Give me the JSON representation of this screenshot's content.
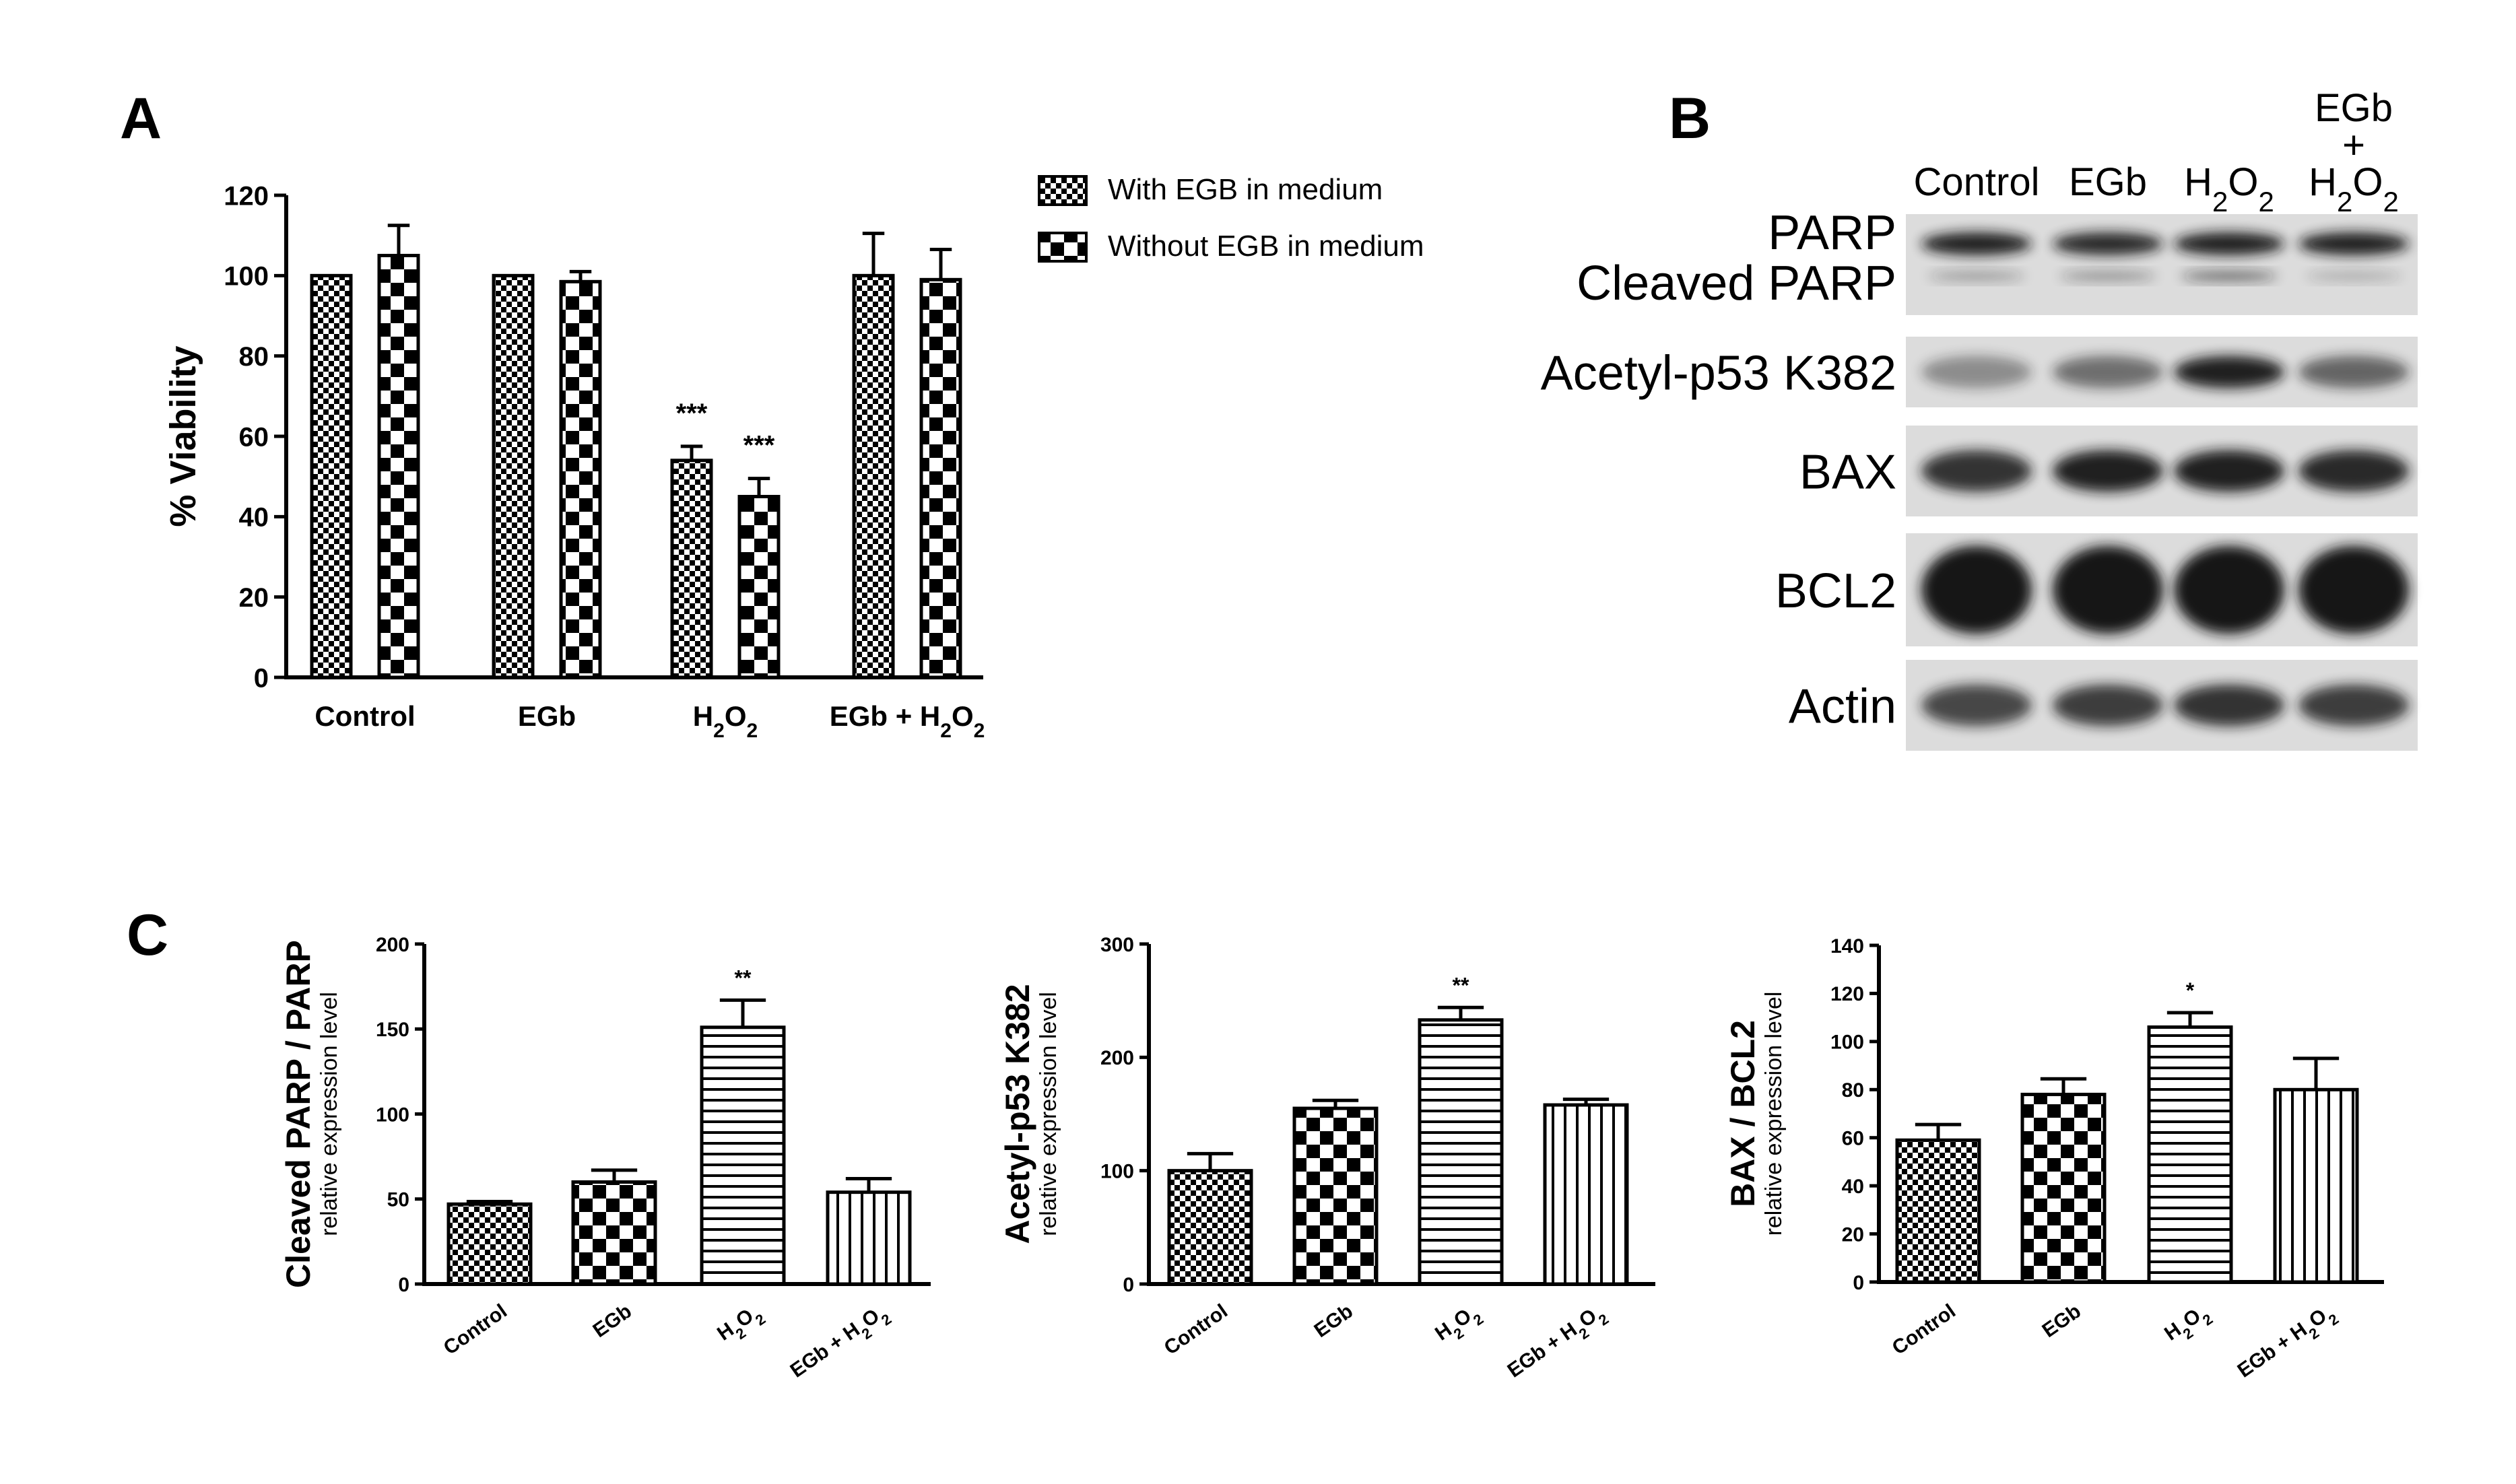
{
  "colors": {
    "ink": "#000000",
    "paper": "#ffffff",
    "blot_bg": "#dcdcdc",
    "band": "#141414"
  },
  "panels": {
    "A": "A",
    "B": "B",
    "C": "C"
  },
  "chart_data": [
    {
      "id": "A",
      "type": "bar",
      "categories": [
        "Control",
        "EGb",
        "H2O2",
        "EGb + H2O2"
      ],
      "category_labels": [
        {
          "parts": [
            {
              "t": "Control"
            }
          ]
        },
        {
          "parts": [
            {
              "t": "EGb"
            }
          ]
        },
        {
          "parts": [
            {
              "t": "H"
            },
            {
              "t": "2",
              "sub": true
            },
            {
              "t": "O"
            },
            {
              "t": "2",
              "sub": true
            }
          ]
        },
        {
          "parts": [
            {
              "t": "EGb + H"
            },
            {
              "t": "2",
              "sub": true
            },
            {
              "t": "O"
            },
            {
              "t": "2",
              "sub": true
            }
          ]
        }
      ],
      "series": [
        {
          "name": "With EGB in medium",
          "pattern": "fine-checker",
          "values": [
            100,
            100,
            54,
            100
          ],
          "errors": [
            0,
            0,
            3.5,
            10.5
          ]
        },
        {
          "name": "Without EGB in medium",
          "pattern": "coarse-checker",
          "values": [
            105,
            98.5,
            45,
            99
          ],
          "errors": [
            7.5,
            2.5,
            4.5,
            7.5
          ]
        }
      ],
      "annotations": [
        {
          "category": 2,
          "series": 0,
          "text": "***"
        },
        {
          "category": 2,
          "series": 1,
          "text": "***"
        }
      ],
      "ylabel": "% Viability",
      "ylim": [
        0,
        120
      ],
      "yticks": [
        0,
        20,
        40,
        60,
        80,
        100,
        120
      ],
      "legend": "top-right"
    },
    {
      "id": "C1",
      "type": "bar",
      "categories": [
        "Control",
        "EGb",
        "H2O2",
        "EGb + H2O2"
      ],
      "category_labels": [
        {
          "parts": [
            {
              "t": "Control"
            }
          ]
        },
        {
          "parts": [
            {
              "t": "EGb"
            }
          ]
        },
        {
          "parts": [
            {
              "t": "H"
            },
            {
              "t": "2",
              "sub": true
            },
            {
              "t": "O"
            },
            {
              "t": "2",
              "sub": true
            }
          ]
        },
        {
          "parts": [
            {
              "t": "EGb + H"
            },
            {
              "t": "2",
              "sub": true
            },
            {
              "t": "O"
            },
            {
              "t": "2",
              "sub": true
            }
          ]
        }
      ],
      "patterns": [
        "fine-checker",
        "coarse-checker",
        "horizontal-lines",
        "vertical-lines"
      ],
      "values": [
        47,
        60,
        151,
        54
      ],
      "errors": [
        1.5,
        7,
        16,
        8
      ],
      "annotations": [
        {
          "category": 2,
          "text": "**"
        }
      ],
      "ylabel": "Cleaved PARP / PARP",
      "ylabel_sub": "relative expression level",
      "ylim": [
        0,
        200
      ],
      "yticks": [
        0,
        50,
        100,
        150,
        200
      ]
    },
    {
      "id": "C2",
      "type": "bar",
      "categories": [
        "Control",
        "EGb",
        "H2O2",
        "EGb + H2O2"
      ],
      "category_labels": [
        {
          "parts": [
            {
              "t": "Control"
            }
          ]
        },
        {
          "parts": [
            {
              "t": "EGb"
            }
          ]
        },
        {
          "parts": [
            {
              "t": "H"
            },
            {
              "t": "2",
              "sub": true
            },
            {
              "t": "O"
            },
            {
              "t": "2",
              "sub": true
            }
          ]
        },
        {
          "parts": [
            {
              "t": "EGb + H"
            },
            {
              "t": "2",
              "sub": true
            },
            {
              "t": "O"
            },
            {
              "t": "2",
              "sub": true
            }
          ]
        }
      ],
      "patterns": [
        "fine-checker",
        "coarse-checker",
        "horizontal-lines",
        "vertical-lines"
      ],
      "values": [
        100,
        155,
        233,
        158
      ],
      "errors": [
        15,
        7,
        11,
        5
      ],
      "annotations": [
        {
          "category": 2,
          "text": "**"
        }
      ],
      "ylabel": "Acetyl-p53 K382",
      "ylabel_sub": "relative expression level",
      "ylim": [
        0,
        300
      ],
      "yticks": [
        0,
        100,
        200,
        300
      ]
    },
    {
      "id": "C3",
      "type": "bar",
      "categories": [
        "Control",
        "EGb",
        "H2O2",
        "EGb + H2O2"
      ],
      "category_labels": [
        {
          "parts": [
            {
              "t": "Control"
            }
          ]
        },
        {
          "parts": [
            {
              "t": "EGb"
            }
          ]
        },
        {
          "parts": [
            {
              "t": "H"
            },
            {
              "t": "2",
              "sub": true
            },
            {
              "t": "O"
            },
            {
              "t": "2",
              "sub": true
            }
          ]
        },
        {
          "parts": [
            {
              "t": "EGb + H"
            },
            {
              "t": "2",
              "sub": true
            },
            {
              "t": "O"
            },
            {
              "t": "2",
              "sub": true
            }
          ]
        }
      ],
      "patterns": [
        "fine-checker",
        "coarse-checker",
        "horizontal-lines",
        "vertical-lines"
      ],
      "values": [
        59,
        78,
        106,
        80
      ],
      "errors": [
        6.5,
        6.5,
        6,
        13
      ],
      "annotations": [
        {
          "category": 2,
          "text": "*"
        }
      ],
      "ylabel": "BAX / BCL2",
      "ylabel_sub": "relative expression level",
      "ylim": [
        0,
        140
      ],
      "yticks": [
        0,
        20,
        40,
        60,
        80,
        100,
        120,
        140
      ]
    }
  ],
  "blot": {
    "lane_headers": [
      {
        "lines": [
          [
            {
              "t": "Control"
            }
          ]
        ]
      },
      {
        "lines": [
          [
            {
              "t": "EGb"
            }
          ]
        ]
      },
      {
        "lines": [
          [
            {
              "t": "H"
            },
            {
              "t": "2",
              "sub": true
            },
            {
              "t": "O"
            },
            {
              "t": "2",
              "sub": true
            }
          ]
        ]
      },
      {
        "lines": [
          [
            {
              "t": "EGb"
            }
          ],
          [
            {
              "t": "+"
            }
          ],
          [
            {
              "t": "H"
            },
            {
              "t": "2",
              "sub": true
            },
            {
              "t": "O"
            },
            {
              "t": "2",
              "sub": true
            }
          ]
        ]
      }
    ],
    "rows": [
      {
        "labels": [
          "PARP",
          "Cleaved PARP"
        ],
        "band_intensity": [
          0.95,
          0.9,
          0.95,
          0.95
        ],
        "secondary_intensity": [
          0.35,
          0.4,
          0.6,
          0.25
        ]
      },
      {
        "labels": [
          "Acetyl-p53 K382"
        ],
        "band_intensity": [
          0.4,
          0.55,
          0.95,
          0.6
        ]
      },
      {
        "labels": [
          "BAX"
        ],
        "band_intensity": [
          0.85,
          0.95,
          0.95,
          0.9
        ]
      },
      {
        "labels": [
          "BCL2"
        ],
        "band_intensity": [
          1.0,
          1.0,
          1.0,
          1.0
        ]
      },
      {
        "labels": [
          "Actin"
        ],
        "band_intensity": [
          0.75,
          0.8,
          0.85,
          0.8
        ]
      }
    ]
  }
}
